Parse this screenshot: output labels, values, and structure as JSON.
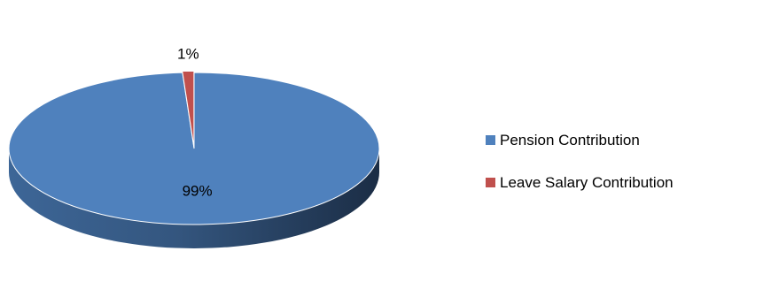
{
  "chart_data": {
    "type": "pie",
    "style": "3d-exploded",
    "title": "",
    "categories": [
      "Pension Contribution",
      "Leave Salary Contribution"
    ],
    "values": [
      99,
      1
    ],
    "value_labels": [
      "99%",
      "1%"
    ],
    "colors": [
      "#4F81BD",
      "#C0504D"
    ],
    "legend_position": "right",
    "start_angle_deg": 0,
    "direction": "clockwise"
  }
}
